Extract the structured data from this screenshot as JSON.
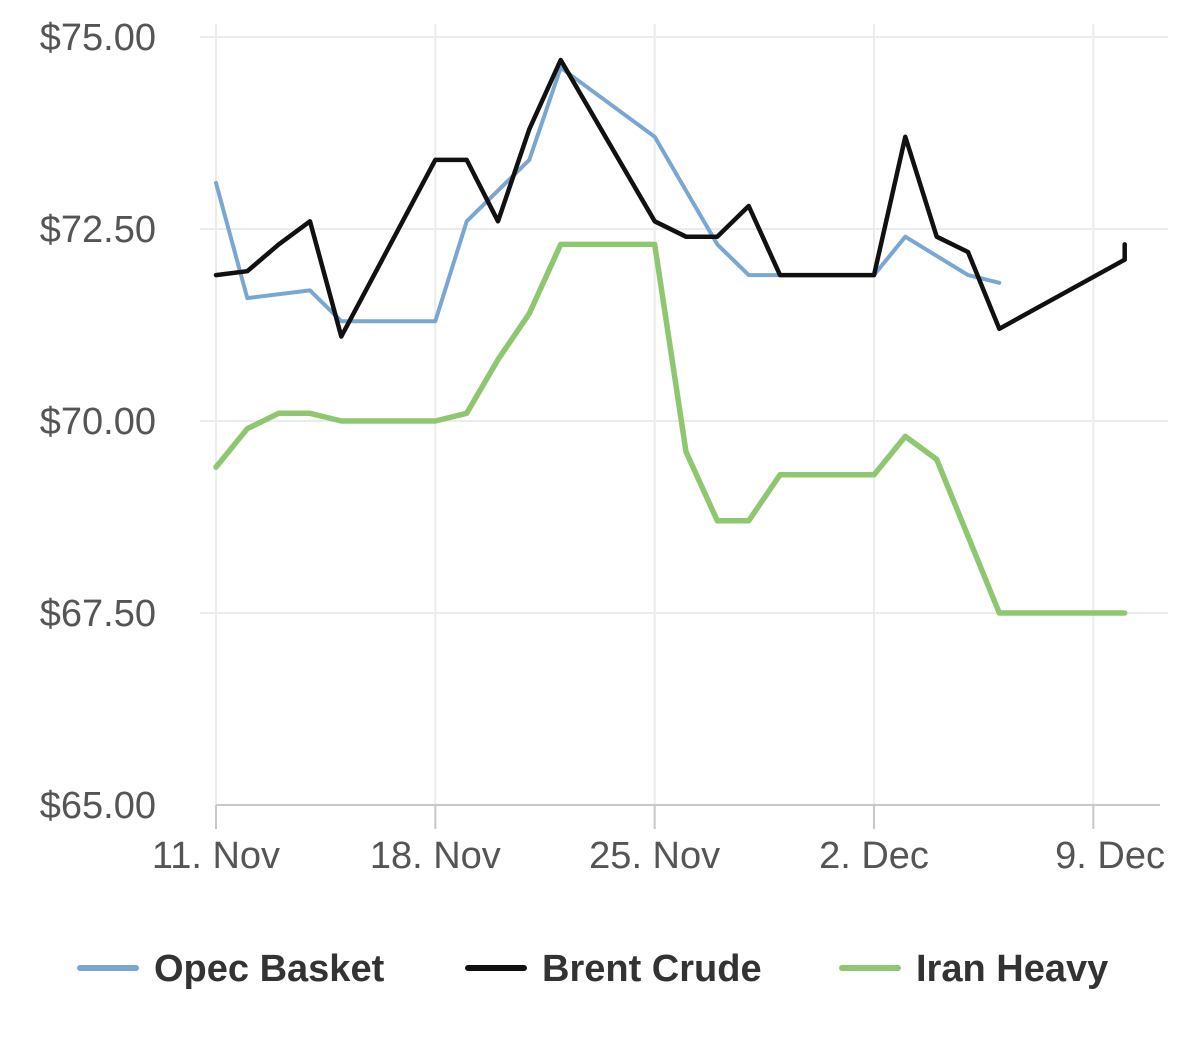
{
  "chart_data": {
    "type": "line",
    "title": "",
    "xlabel": "",
    "ylabel": "",
    "x_axis": {
      "type": "date",
      "min": "2019-11-11",
      "max": "2019-12-11",
      "ticks": [
        {
          "date": "2019-11-11",
          "label": "11. Nov"
        },
        {
          "date": "2019-11-18",
          "label": "18. Nov"
        },
        {
          "date": "2019-11-25",
          "label": "25. Nov"
        },
        {
          "date": "2019-12-02",
          "label": "2. Dec"
        },
        {
          "date": "2019-12-09",
          "label": "9. Dec"
        }
      ]
    },
    "y_axis": {
      "min": 65,
      "max": 75,
      "ticks": [
        {
          "value": 65,
          "label": "$65.00"
        },
        {
          "value": 67.5,
          "label": "$67.50"
        },
        {
          "value": 70,
          "label": "$70.00"
        },
        {
          "value": 72.5,
          "label": "$72.50"
        },
        {
          "value": 75,
          "label": "$75.00"
        }
      ]
    },
    "grid": true,
    "legend_position": "bottom",
    "series": [
      {
        "name": "Opec Basket",
        "color": "#7aa6d4",
        "points": [
          [
            "2019-11-11",
            73.1
          ],
          [
            "2019-11-12",
            71.6
          ],
          [
            "2019-11-14",
            71.7
          ],
          [
            "2019-11-15",
            71.3
          ],
          [
            "2019-11-18",
            71.3
          ],
          [
            "2019-11-19",
            72.6
          ],
          [
            "2019-11-20",
            73.0
          ],
          [
            "2019-11-21",
            73.4
          ],
          [
            "2019-11-22",
            74.6
          ],
          [
            "2019-11-25",
            73.7
          ],
          [
            "2019-11-26",
            73.0
          ],
          [
            "2019-11-27",
            72.3
          ],
          [
            "2019-11-28",
            71.9
          ],
          [
            "2019-12-02",
            71.9
          ],
          [
            "2019-12-03",
            72.4
          ],
          [
            "2019-12-05",
            71.9
          ],
          [
            "2019-12-06",
            71.8
          ]
        ]
      },
      {
        "name": "Brent Crude",
        "color": "#111111",
        "points": [
          [
            "2019-11-11",
            71.9
          ],
          [
            "2019-11-12",
            71.95
          ],
          [
            "2019-11-13",
            72.3
          ],
          [
            "2019-11-14",
            72.6
          ],
          [
            "2019-11-15",
            71.1
          ],
          [
            "2019-11-18",
            73.4
          ],
          [
            "2019-11-19",
            73.4
          ],
          [
            "2019-11-20",
            72.6
          ],
          [
            "2019-11-21",
            73.8
          ],
          [
            "2019-11-22",
            74.7
          ],
          [
            "2019-11-25",
            72.6
          ],
          [
            "2019-11-26",
            72.4
          ],
          [
            "2019-11-27",
            72.4
          ],
          [
            "2019-11-28",
            72.8
          ],
          [
            "2019-11-29",
            71.9
          ],
          [
            "2019-12-02",
            71.9
          ],
          [
            "2019-12-03",
            73.7
          ],
          [
            "2019-12-04",
            72.4
          ],
          [
            "2019-12-05",
            72.2
          ],
          [
            "2019-12-06",
            71.2
          ],
          [
            "2019-12-10",
            72.1
          ],
          [
            "2019-12-10",
            72.3
          ]
        ]
      },
      {
        "name": "Iran Heavy",
        "color": "#8fc771",
        "points": [
          [
            "2019-11-11",
            69.4
          ],
          [
            "2019-11-12",
            69.9
          ],
          [
            "2019-11-13",
            70.1
          ],
          [
            "2019-11-14",
            70.1
          ],
          [
            "2019-11-15",
            70.0
          ],
          [
            "2019-11-18",
            70.0
          ],
          [
            "2019-11-19",
            70.1
          ],
          [
            "2019-11-20",
            70.8
          ],
          [
            "2019-11-21",
            71.4
          ],
          [
            "2019-11-22",
            72.3
          ],
          [
            "2019-11-25",
            72.3
          ],
          [
            "2019-11-26",
            69.6
          ],
          [
            "2019-11-27",
            68.7
          ],
          [
            "2019-11-28",
            68.7
          ],
          [
            "2019-11-29",
            69.3
          ],
          [
            "2019-12-02",
            69.3
          ],
          [
            "2019-12-03",
            69.8
          ],
          [
            "2019-12-04",
            69.5
          ],
          [
            "2019-12-06",
            67.5
          ],
          [
            "2019-12-10",
            67.5
          ]
        ]
      }
    ]
  }
}
